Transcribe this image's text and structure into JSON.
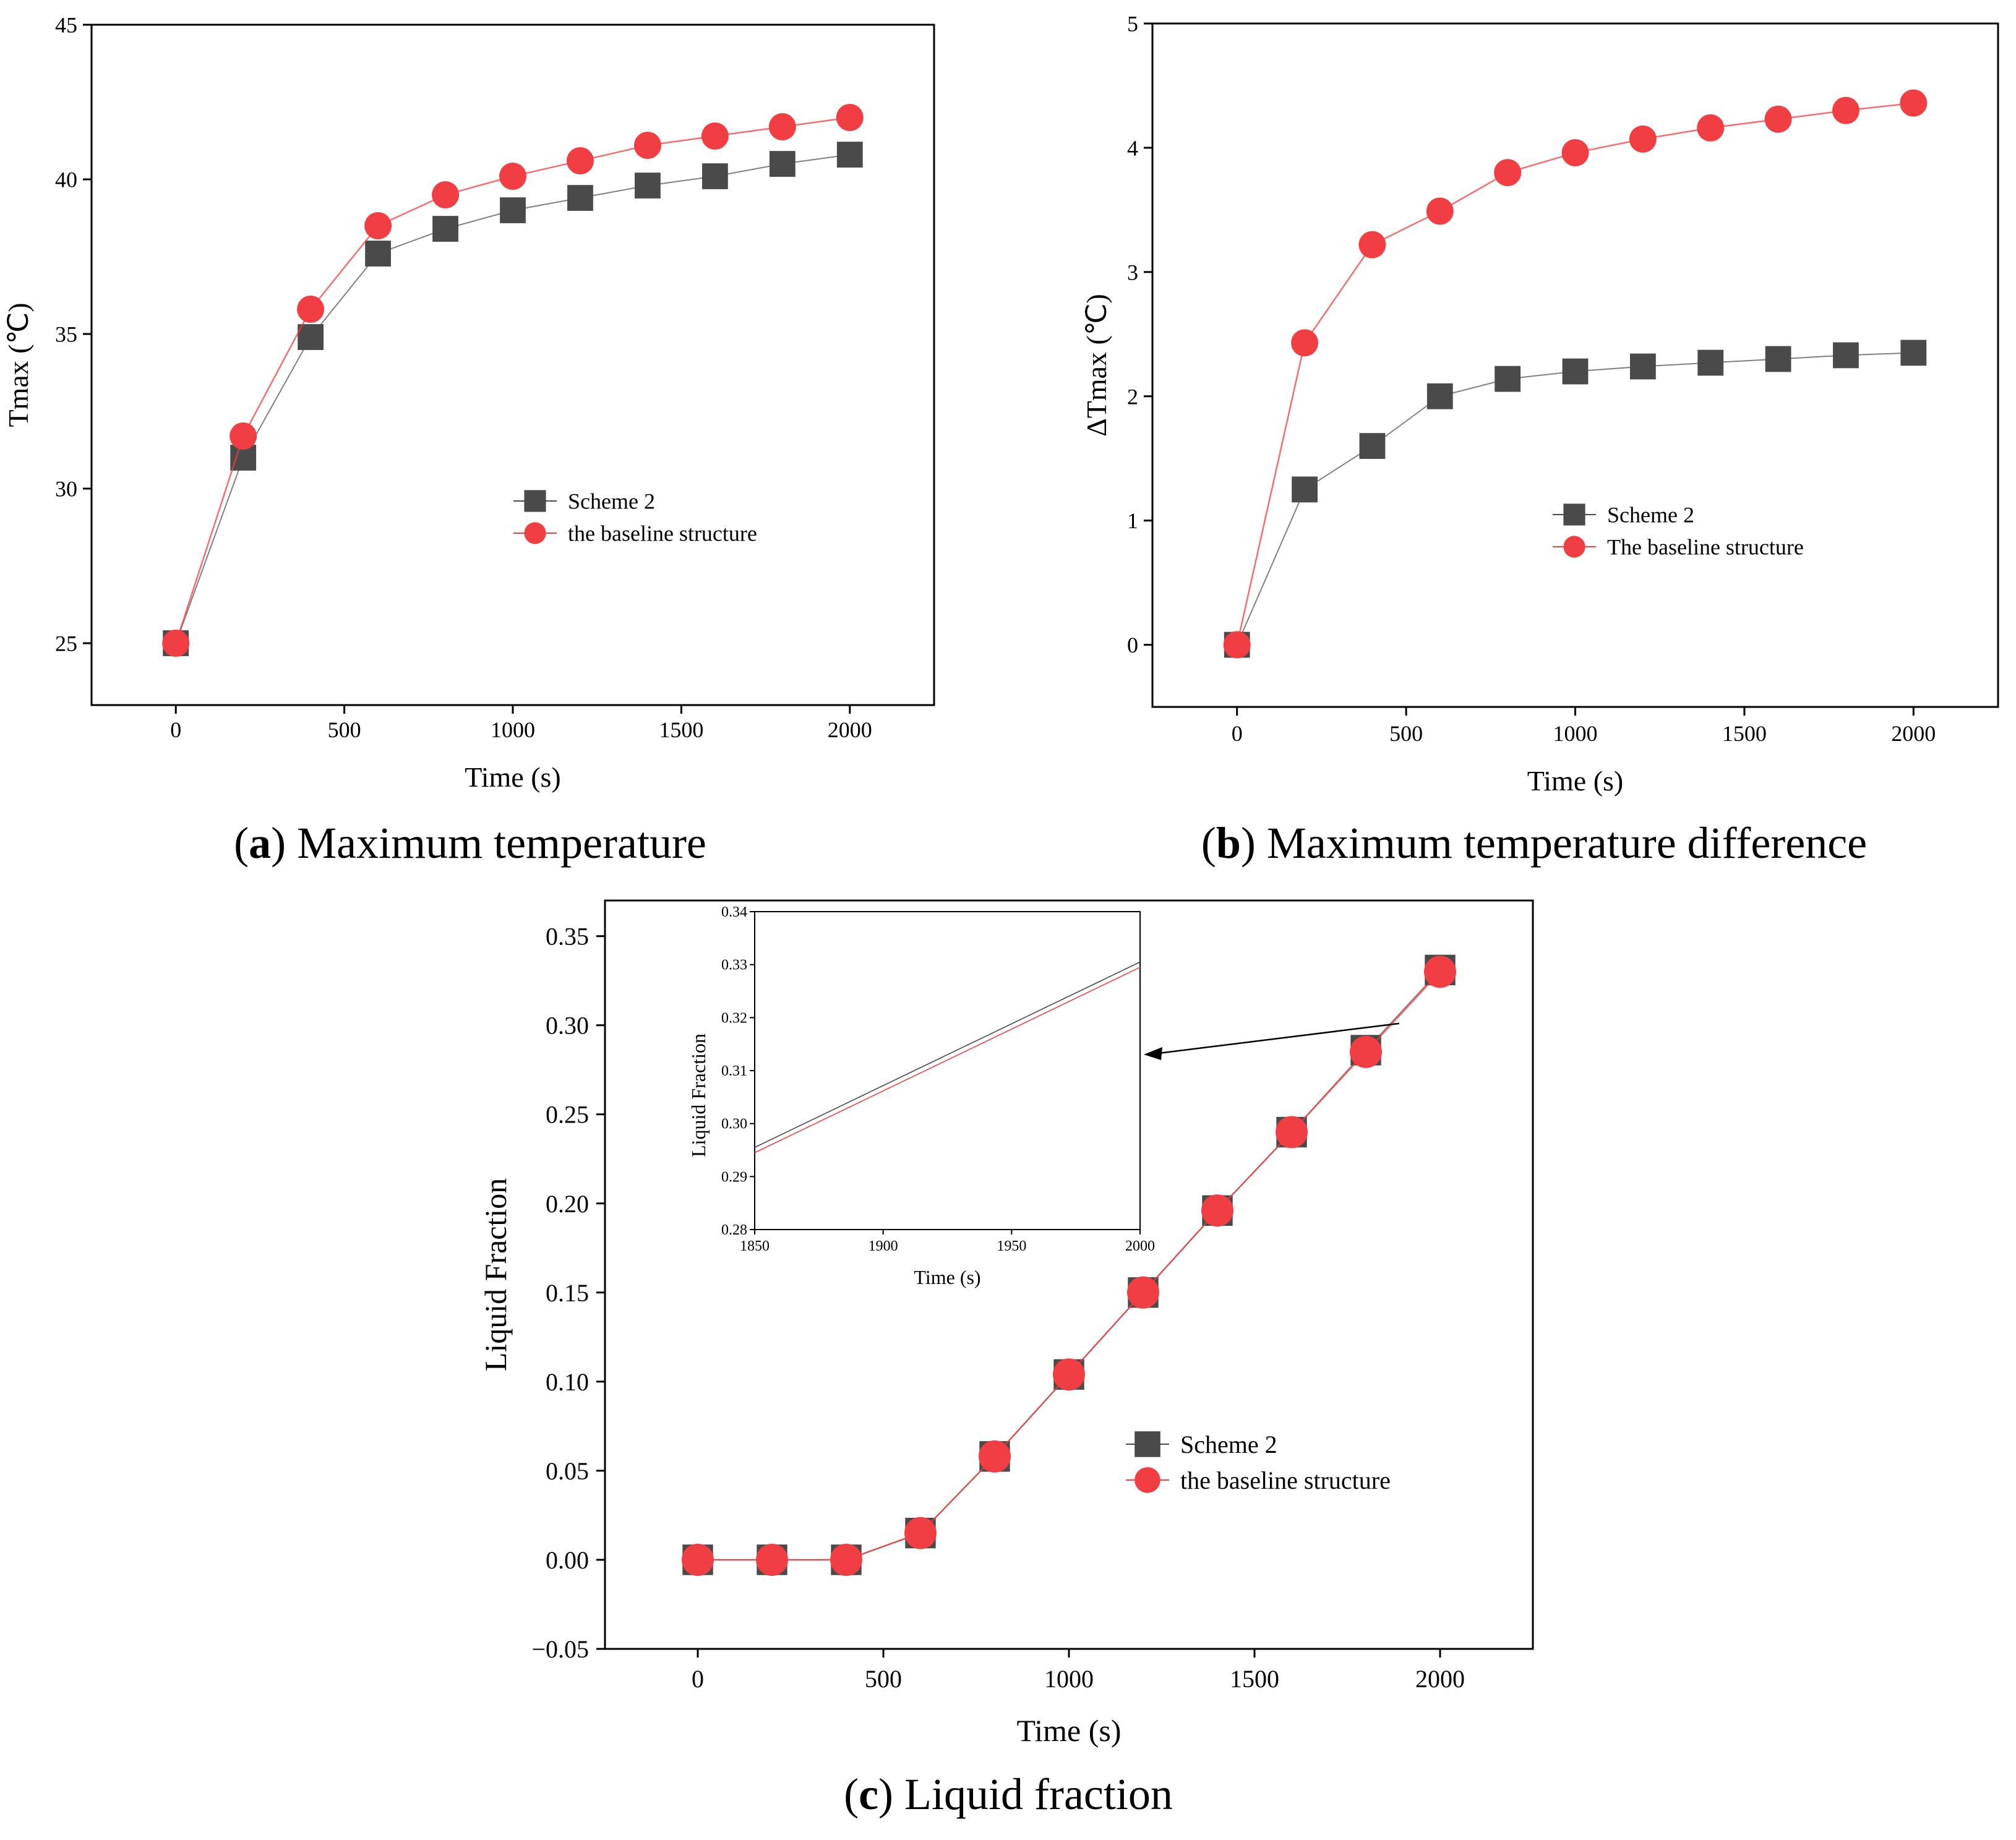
{
  "colors": {
    "scheme2": "#4a4a4a",
    "baseline": "#f03e42",
    "axis": "#000000"
  },
  "chart_data": [
    {
      "id": "a",
      "type": "line",
      "caption": {
        "letter": "a",
        "text": " Maximum temperature"
      },
      "xlabel": "Time (s)",
      "ylabel": "Tmax (℃)",
      "xlim": [
        -250,
        2250
      ],
      "ylim": [
        23,
        45
      ],
      "xticks": [
        0,
        500,
        1000,
        1500,
        2000
      ],
      "yticks": [
        25,
        30,
        35,
        40,
        45
      ],
      "x": [
        0,
        200,
        400,
        600,
        800,
        1000,
        1200,
        1400,
        1600,
        1800,
        2000
      ],
      "series": [
        {
          "name": "Scheme 2",
          "marker": "square",
          "values": [
            25.0,
            31.0,
            34.9,
            37.6,
            38.4,
            39.0,
            39.4,
            39.8,
            40.1,
            40.5,
            40.8
          ]
        },
        {
          "name": "the baseline structure",
          "marker": "circle",
          "values": [
            25.0,
            31.7,
            35.8,
            38.5,
            39.5,
            40.1,
            40.6,
            41.1,
            41.4,
            41.7,
            42.0
          ]
        }
      ],
      "legend": "center-right"
    },
    {
      "id": "b",
      "type": "line",
      "caption": {
        "letter": "b",
        "text": " Maximum temperature difference"
      },
      "xlabel": "Time (s)",
      "ylabel": "ΔTmax (℃)",
      "xlim": [
        -250,
        2250
      ],
      "ylim": [
        -0.5,
        5
      ],
      "xticks": [
        0,
        500,
        1000,
        1500,
        2000
      ],
      "yticks": [
        0,
        1,
        2,
        3,
        4,
        5
      ],
      "x": [
        0,
        200,
        400,
        600,
        800,
        1000,
        1200,
        1400,
        1600,
        1800,
        2000
      ],
      "series": [
        {
          "name": "Scheme 2",
          "marker": "square",
          "values": [
            0.0,
            1.25,
            1.6,
            2.0,
            2.14,
            2.2,
            2.24,
            2.27,
            2.3,
            2.33,
            2.35
          ]
        },
        {
          "name": "The baseline structure",
          "marker": "circle",
          "values": [
            0.0,
            2.43,
            3.22,
            3.49,
            3.8,
            3.96,
            4.07,
            4.16,
            4.23,
            4.3,
            4.36
          ]
        }
      ],
      "legend": "center-right"
    },
    {
      "id": "c",
      "type": "line",
      "caption": {
        "letter": "c",
        "text": " Liquid fraction"
      },
      "xlabel": "Time (s)",
      "ylabel": "Liquid Fraction",
      "xlim": [
        -250,
        2250
      ],
      "ylim": [
        -0.05,
        0.37
      ],
      "xticks": [
        0,
        500,
        1000,
        1500,
        2000
      ],
      "yticks": [
        -0.05,
        0.0,
        0.05,
        0.1,
        0.15,
        0.2,
        0.25,
        0.3,
        0.35
      ],
      "ytick_labels": [
        "−0.05",
        "0.00",
        "0.05",
        "0.10",
        "0.15",
        "0.20",
        "0.25",
        "0.30",
        "0.35"
      ],
      "x": [
        0,
        200,
        400,
        600,
        800,
        1000,
        1200,
        1400,
        1600,
        1800,
        2000
      ],
      "series": [
        {
          "name": "Scheme 2",
          "marker": "square",
          "values": [
            0.0,
            0.0,
            0.0,
            0.015,
            0.058,
            0.104,
            0.15,
            0.196,
            0.24,
            0.286,
            0.331
          ]
        },
        {
          "name": "the baseline structure",
          "marker": "circle",
          "values": [
            0.0,
            0.0,
            0.0,
            0.015,
            0.058,
            0.104,
            0.15,
            0.196,
            0.24,
            0.285,
            0.33
          ]
        }
      ],
      "legend": "lower-right",
      "inset": {
        "xlabel": "Time (s)",
        "ylabel": "Liquid Fraction",
        "xlim": [
          1850,
          2000
        ],
        "ylim": [
          0.28,
          0.34
        ],
        "xticks": [
          1850,
          1900,
          1950,
          2000
        ],
        "yticks": [
          0.28,
          0.29,
          0.3,
          0.31,
          0.32,
          0.33,
          0.34
        ],
        "ytick_labels": [
          "0.28",
          "0.29",
          "0.30",
          "0.31",
          "0.32",
          "0.33",
          "0.34"
        ],
        "series": [
          {
            "name": "Scheme 2",
            "x": [
              1850,
              2000
            ],
            "values": [
              0.2955,
              0.3305
            ]
          },
          {
            "name": "the baseline structure",
            "x": [
              1850,
              2000
            ],
            "values": [
              0.2945,
              0.3295
            ]
          }
        ]
      }
    }
  ]
}
